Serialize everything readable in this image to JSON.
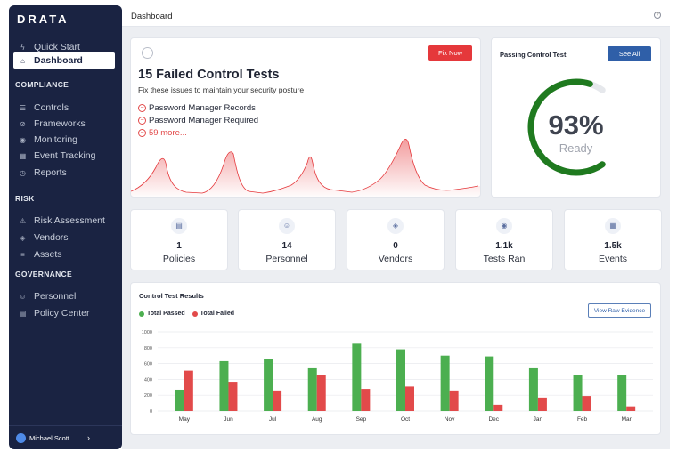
{
  "app": {
    "logo": "DRATA"
  },
  "sidebar": {
    "top_items": [
      {
        "label": "Quick Start",
        "icon": "lightning-icon"
      },
      {
        "label": "Dashboard",
        "icon": "home-icon"
      }
    ],
    "sections": [
      {
        "title": "COMPLIANCE",
        "items": [
          {
            "label": "Controls",
            "icon": "controls-icon"
          },
          {
            "label": "Frameworks",
            "icon": "frameworks-icon"
          },
          {
            "label": "Monitoring",
            "icon": "monitoring-icon"
          },
          {
            "label": "Event Tracking",
            "icon": "calendar-icon"
          },
          {
            "label": "Reports",
            "icon": "reports-icon"
          }
        ]
      },
      {
        "title": "RISK",
        "items": [
          {
            "label": "Risk Assessment",
            "icon": "risk-icon"
          },
          {
            "label": "Vendors",
            "icon": "vendors-icon"
          },
          {
            "label": "Assets",
            "icon": "assets-icon"
          }
        ]
      },
      {
        "title": "GOVERNANCE",
        "items": [
          {
            "label": "Personnel",
            "icon": "personnel-icon"
          },
          {
            "label": "Policy Center",
            "icon": "policy-icon"
          }
        ]
      }
    ],
    "user": {
      "name": "Michael Scott",
      "chevron": "›"
    }
  },
  "header": {
    "title": "Dashboard",
    "help": "?"
  },
  "failed_card": {
    "title": "15 Failed Control Tests",
    "subtitle": "Fix these issues to maintain your security posture",
    "button": "Fix Now",
    "issues": [
      "Password Manager Records",
      "Password Manager Required"
    ],
    "more": "59 more...",
    "accent": "#e5383b"
  },
  "passing_card": {
    "title": "Passing Control Test",
    "button": "See All",
    "value": "93%",
    "label": "Ready",
    "percent": 93,
    "color": "#1f7a1f"
  },
  "stats": [
    {
      "value": "1",
      "label": "Policies",
      "icon": "document-icon"
    },
    {
      "value": "14",
      "label": "Personnel",
      "icon": "people-icon"
    },
    {
      "value": "0",
      "label": "Vendors",
      "icon": "layers-icon"
    },
    {
      "value": "1.1k",
      "label": "Tests Ran",
      "icon": "signal-icon"
    },
    {
      "value": "1.5k",
      "label": "Events",
      "icon": "calendar-icon"
    }
  ],
  "results": {
    "title": "Control Test Results",
    "button": "View Raw Evidence",
    "legend": [
      "Total Passed",
      "Total Failed"
    ]
  },
  "chart_data": {
    "type": "bar",
    "categories": [
      "May",
      "Jun",
      "Jul",
      "Aug",
      "Sep",
      "Oct",
      "Nov",
      "Dec",
      "Jan",
      "Feb",
      "Mar"
    ],
    "series": [
      {
        "name": "Total Passed",
        "color": "#4caf50",
        "values": [
          270,
          630,
          660,
          540,
          850,
          780,
          700,
          690,
          540,
          460,
          460
        ]
      },
      {
        "name": "Total Failed",
        "color": "#e24a4a",
        "values": [
          510,
          370,
          260,
          460,
          280,
          310,
          260,
          80,
          170,
          190,
          60
        ]
      }
    ],
    "yticks": [
      0,
      200,
      400,
      600,
      800,
      1000
    ],
    "ylim": [
      0,
      1000
    ],
    "grid": true,
    "legend_position": "top-left"
  }
}
